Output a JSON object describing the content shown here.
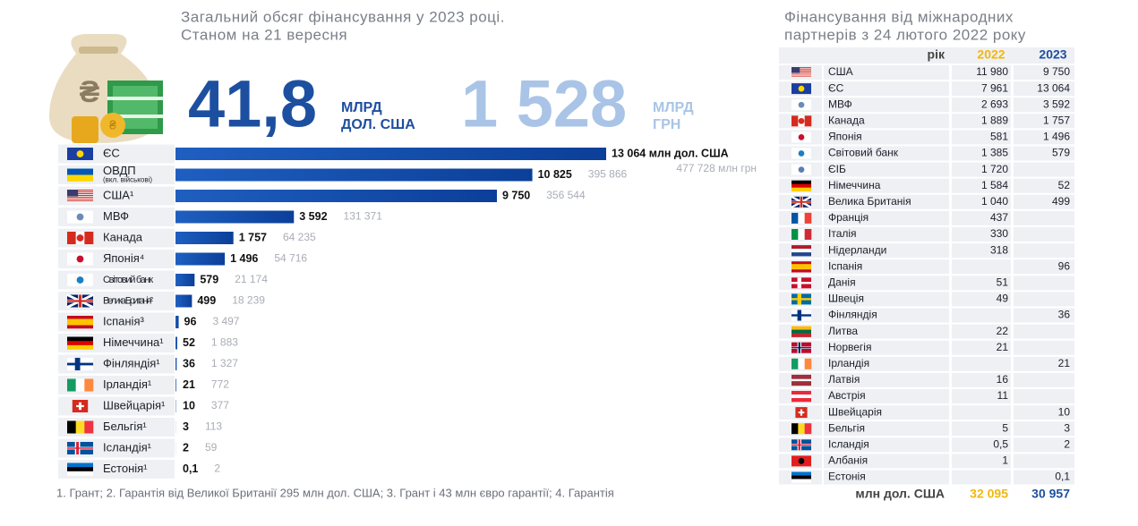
{
  "chart_data": {
    "type": "bar",
    "orientation": "horizontal",
    "title": "Загальний обсяг фінансування у 2023 році.",
    "subtitle": "Станом на 21 вересня",
    "headline_usd": "41,8",
    "headline_usd_unit1": "МЛРД",
    "headline_usd_unit2": "ДОЛ. США",
    "headline_uah": "1 528",
    "headline_uah_unit1": "МЛРД",
    "headline_uah_unit2": "ГРН",
    "categories": [
      "ЄС",
      "ОВДП",
      "США¹",
      "МВФ",
      "Канада",
      "Японія⁴",
      "Світовий банк",
      "Велика Британія²",
      "Іспанія³",
      "Німеччина¹",
      "Фінляндія¹",
      "Ірландія¹",
      "Швейцарія¹",
      "Бельгія¹",
      "Ісландія¹",
      "Естонія¹"
    ],
    "ovdp_note": "(вкл. військові)",
    "values": [
      13064,
      10825,
      9750,
      3592,
      1757,
      1496,
      579,
      499,
      96,
      52,
      36,
      21,
      10,
      3,
      2,
      0.1
    ],
    "value_labels": [
      "13 064 млн дол. США",
      "10 825",
      "9 750",
      "3 592",
      "1 757",
      "1 496",
      "579",
      "499",
      "96",
      "52",
      "36",
      "21",
      "10",
      "3",
      "2",
      "0,1"
    ],
    "uah_labels": [
      "477 728 млн грн",
      "395 866",
      "356 544",
      "131 371",
      "64 235",
      "54 716",
      "21 174",
      "18 239",
      "3 497",
      "1 883",
      "1 327",
      "772",
      "377",
      "113",
      "59",
      "2"
    ],
    "xlim": [
      0,
      13064
    ],
    "color": "#1f5fc0",
    "footnote": "1. Грант; 2. Гарантія від Великої Британії 295 млн дол. США; 3. Грант і 43 млн євро гарантії; 4. Гарантія"
  },
  "table": {
    "title": [
      "Фінансування від міжнародних",
      "партнерів з 24 лютого 2022 року"
    ],
    "header": [
      "рік",
      "2022",
      "2023"
    ],
    "rows": [
      [
        "США",
        "11 980",
        "9 750"
      ],
      [
        "ЄС",
        "7 961",
        "13 064"
      ],
      [
        "МВФ",
        "2 693",
        "3 592"
      ],
      [
        "Канада",
        "1 889",
        "1 757"
      ],
      [
        "Японія",
        "581",
        "1 496"
      ],
      [
        "Світовий банк",
        "1 385",
        "579"
      ],
      [
        "ЄІБ",
        "1 720",
        null
      ],
      [
        "Німеччина",
        "1 584",
        "52"
      ],
      [
        "Велика Британія",
        "1 040",
        "499"
      ],
      [
        "Франція",
        "437",
        null
      ],
      [
        "Італія",
        "330",
        null
      ],
      [
        "Нідерланди",
        "318",
        null
      ],
      [
        "Іспанія",
        null,
        "96"
      ],
      [
        "Данія",
        "51",
        null
      ],
      [
        "Швеція",
        "49",
        null
      ],
      [
        "Фінляндія",
        null,
        "36"
      ],
      [
        "Литва",
        "22",
        null
      ],
      [
        "Норвегія",
        "21",
        null
      ],
      [
        "Ірландія",
        null,
        "21"
      ],
      [
        "Латвія",
        "16",
        null
      ],
      [
        "Австрія",
        "11",
        null
      ],
      [
        "Швейцарія",
        null,
        "10"
      ],
      [
        "Бельгія",
        "5",
        "3"
      ],
      [
        "Ісландія",
        "0,5",
        "2"
      ],
      [
        "Албанія",
        "1",
        null
      ],
      [
        "Естонія",
        null,
        "0,1"
      ]
    ],
    "total": [
      "млн дол. США",
      "32 095",
      "30 957"
    ]
  }
}
